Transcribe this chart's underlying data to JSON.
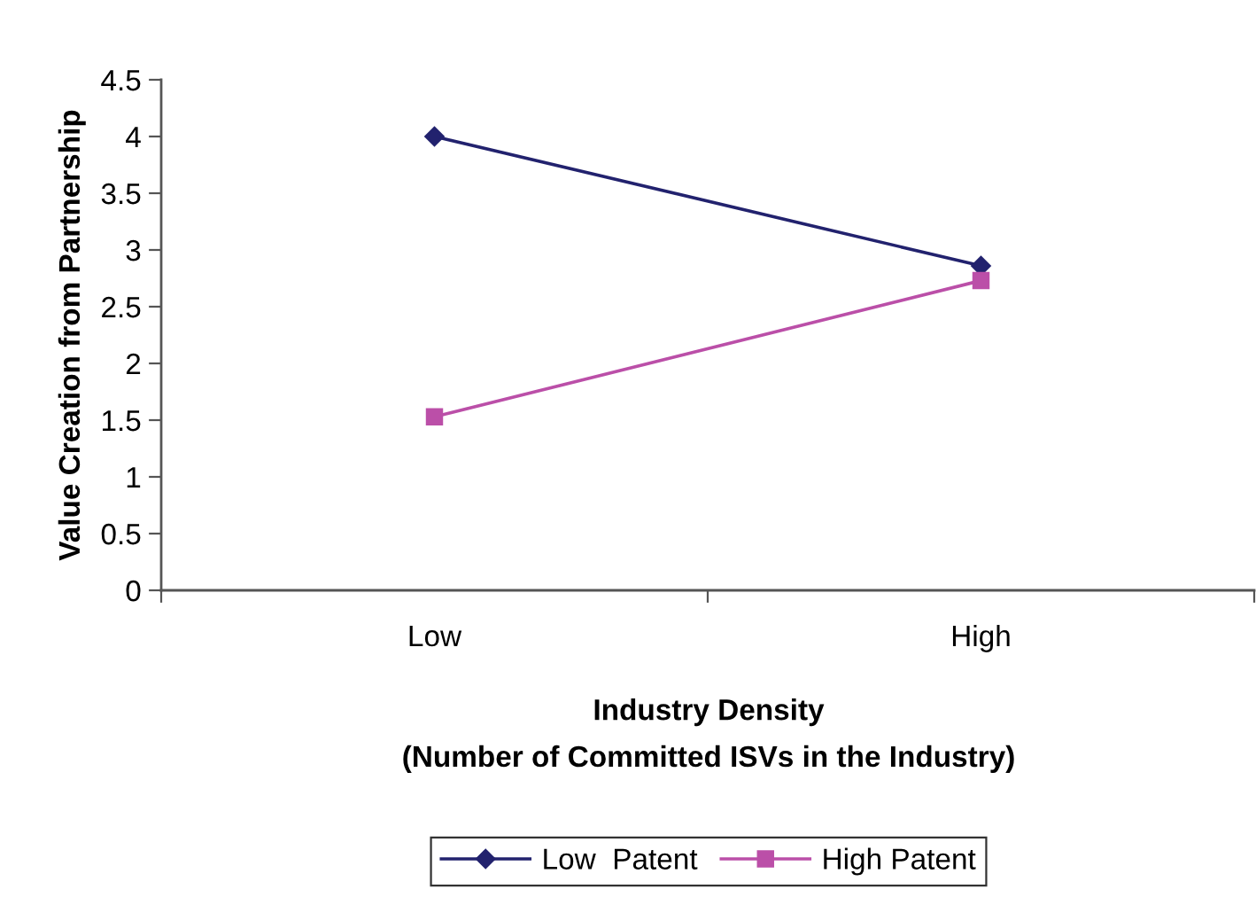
{
  "chart_data": {
    "type": "line",
    "xlabel": "Industry Density\n(Number of Committed ISVs in the Industry)",
    "ylabel": "Value Creation from Partnership",
    "categories": [
      "Low",
      "High"
    ],
    "series": [
      {
        "name": "Low  Patent",
        "color": "#22226e",
        "marker": "diamond",
        "values": [
          4.0,
          2.86
        ]
      },
      {
        "name": "High Patent",
        "color": "#bb4fa8",
        "marker": "square",
        "values": [
          1.53,
          2.73
        ]
      }
    ],
    "ylim": [
      0,
      4.5
    ],
    "yticks": [
      0,
      0.5,
      1,
      1.5,
      2,
      2.5,
      3,
      3.5,
      4,
      4.5
    ],
    "grid": false,
    "legend": "bottom",
    "line_style": "solid"
  }
}
